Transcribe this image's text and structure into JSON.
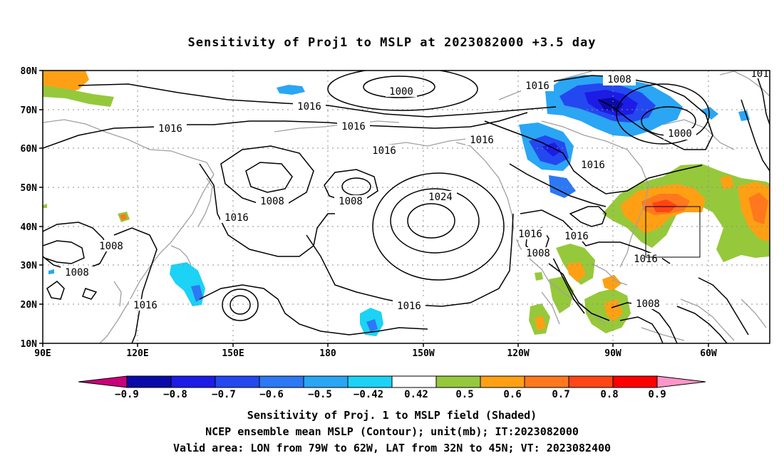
{
  "title": "Sensitivity of Proj1 to MSLP at 2023082000 +3.5 day",
  "axes": {
    "lat_labels": [
      "80N",
      "70N",
      "60N",
      "50N",
      "40N",
      "30N",
      "20N",
      "10N"
    ],
    "lon_labels": [
      "90E",
      "120E",
      "150E",
      "180",
      "150W",
      "120W",
      "90W",
      "60W"
    ]
  },
  "contour_labels": [
    "1000",
    "1016",
    "1016",
    "1016",
    "1016",
    "1008",
    "1008",
    "1024",
    "1016",
    "1016",
    "1016",
    "1008",
    "1016",
    "1016",
    "1008",
    "1016",
    "1008",
    "1008",
    "1008",
    "1016",
    "1008",
    "1000",
    "1008",
    "101",
    "1016"
  ],
  "colorbar": {
    "tick_labels": [
      "−0.9",
      "−0.8",
      "−0.7",
      "−0.6",
      "−0.5",
      "−0.42",
      "0.42",
      "0.5",
      "0.6",
      "0.7",
      "0.8",
      "0.9"
    ],
    "colors": [
      "#c8007a",
      "#0a0aa8",
      "#1c1ce6",
      "#2448f0",
      "#2c78f5",
      "#2aa6f5",
      "#1cd2f5",
      "#ffffff",
      "#96c83c",
      "#ffa014",
      "#ff781e",
      "#ff4614",
      "#ff0000",
      "#ff96c8"
    ]
  },
  "captions": [
    "Sensitivity of Proj. 1 to MSLP field (Shaded)",
    "NCEP ensemble mean MSLP (Contour); unit(mb); IT:2023082000",
    "Valid area: LON from 79W to 62W, LAT from 32N to 45N; VT: 2023082400"
  ]
}
